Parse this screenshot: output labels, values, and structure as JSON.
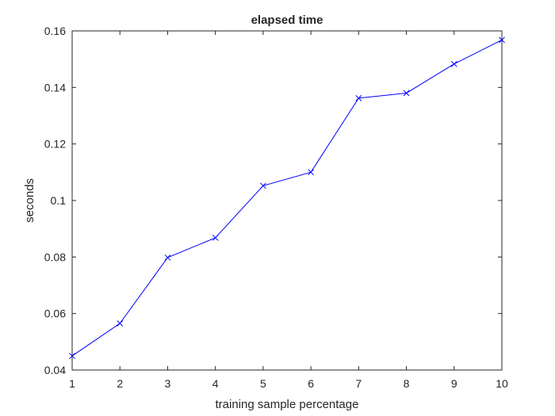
{
  "chart_data": {
    "type": "line",
    "title": "elapsed time",
    "xlabel": "training sample percentage",
    "ylabel": "seconds",
    "xlim": [
      1,
      10
    ],
    "ylim": [
      0.04,
      0.16
    ],
    "xticks": [
      1,
      2,
      3,
      4,
      5,
      6,
      7,
      8,
      9,
      10
    ],
    "yticks": [
      0.04,
      0.06,
      0.08,
      0.1,
      0.12,
      0.14,
      0.16
    ],
    "xtick_labels": [
      "1",
      "2",
      "3",
      "4",
      "5",
      "6",
      "7",
      "8",
      "9",
      "10"
    ],
    "ytick_labels": [
      "0.04",
      "0.06",
      "0.08",
      "0.1",
      "0.12",
      "0.14",
      "0.16"
    ],
    "grid": false,
    "series": [
      {
        "x": [
          1,
          2,
          3,
          4,
          5,
          6,
          7,
          8,
          9,
          10
        ],
        "values": [
          0.045,
          0.0565,
          0.0798,
          0.0868,
          0.1052,
          0.11,
          0.1362,
          0.138,
          0.1483,
          0.1568
        ],
        "color": "#0000ff",
        "marker": "x"
      }
    ]
  }
}
